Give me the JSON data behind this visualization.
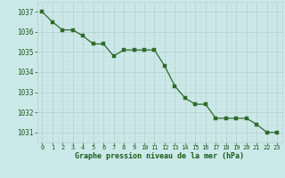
{
  "x": [
    0,
    1,
    2,
    3,
    4,
    5,
    6,
    7,
    8,
    9,
    10,
    11,
    12,
    13,
    14,
    15,
    16,
    17,
    18,
    19,
    20,
    21,
    22,
    23
  ],
  "y": [
    1037.0,
    1036.5,
    1036.1,
    1036.1,
    1035.8,
    1035.4,
    1035.4,
    1034.8,
    1035.1,
    1035.1,
    1035.1,
    1035.1,
    1034.3,
    1033.3,
    1032.7,
    1032.4,
    1032.4,
    1031.7,
    1031.7,
    1031.7,
    1031.7,
    1031.4,
    1031.0,
    1031.0
  ],
  "line_color": "#2d6b2a",
  "marker_color": "#2d6b2a",
  "bg_color": "#cce9e9",
  "grid_major_color": "#b8d0d0",
  "grid_minor_color": "#c8e0e0",
  "xlabel": "Graphe pression niveau de la mer (hPa)",
  "xlabel_color": "#1a5c1a",
  "tick_color": "#1a5c1a",
  "ylim": [
    1030.5,
    1037.5
  ],
  "yticks": [
    1031,
    1032,
    1033,
    1034,
    1035,
    1036,
    1037
  ],
  "xticks": [
    0,
    1,
    2,
    3,
    4,
    5,
    6,
    7,
    8,
    9,
    10,
    11,
    12,
    13,
    14,
    15,
    16,
    17,
    18,
    19,
    20,
    21,
    22,
    23
  ]
}
